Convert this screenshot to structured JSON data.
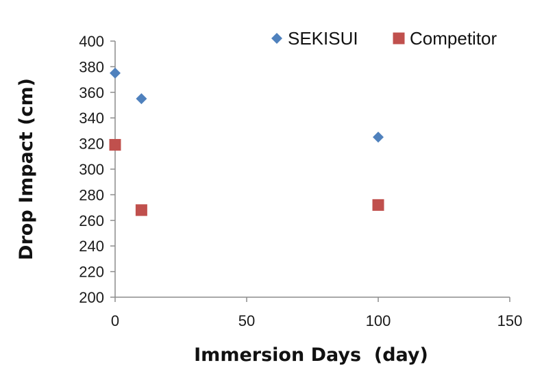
{
  "chart_data": {
    "type": "scatter",
    "title": "",
    "xlabel": "Immersion Days  (day)",
    "ylabel": "Drop Impact (cm)",
    "xlim": [
      0,
      150
    ],
    "ylim": [
      200,
      400
    ],
    "xticks": [
      0,
      50,
      100,
      150
    ],
    "yticks": [
      200,
      220,
      240,
      260,
      280,
      300,
      320,
      340,
      360,
      380,
      400
    ],
    "grid": false,
    "legend_position": "top-right",
    "series": [
      {
        "name": "SEKISUI",
        "marker": "diamond",
        "color": "#4f81bd",
        "points": [
          {
            "x": 0,
            "y": 375
          },
          {
            "x": 10,
            "y": 355
          },
          {
            "x": 100,
            "y": 325
          }
        ]
      },
      {
        "name": "Competitor",
        "marker": "square",
        "color": "#c0504d",
        "points": [
          {
            "x": 0,
            "y": 319
          },
          {
            "x": 10,
            "y": 268
          },
          {
            "x": 100,
            "y": 272
          }
        ]
      }
    ]
  }
}
